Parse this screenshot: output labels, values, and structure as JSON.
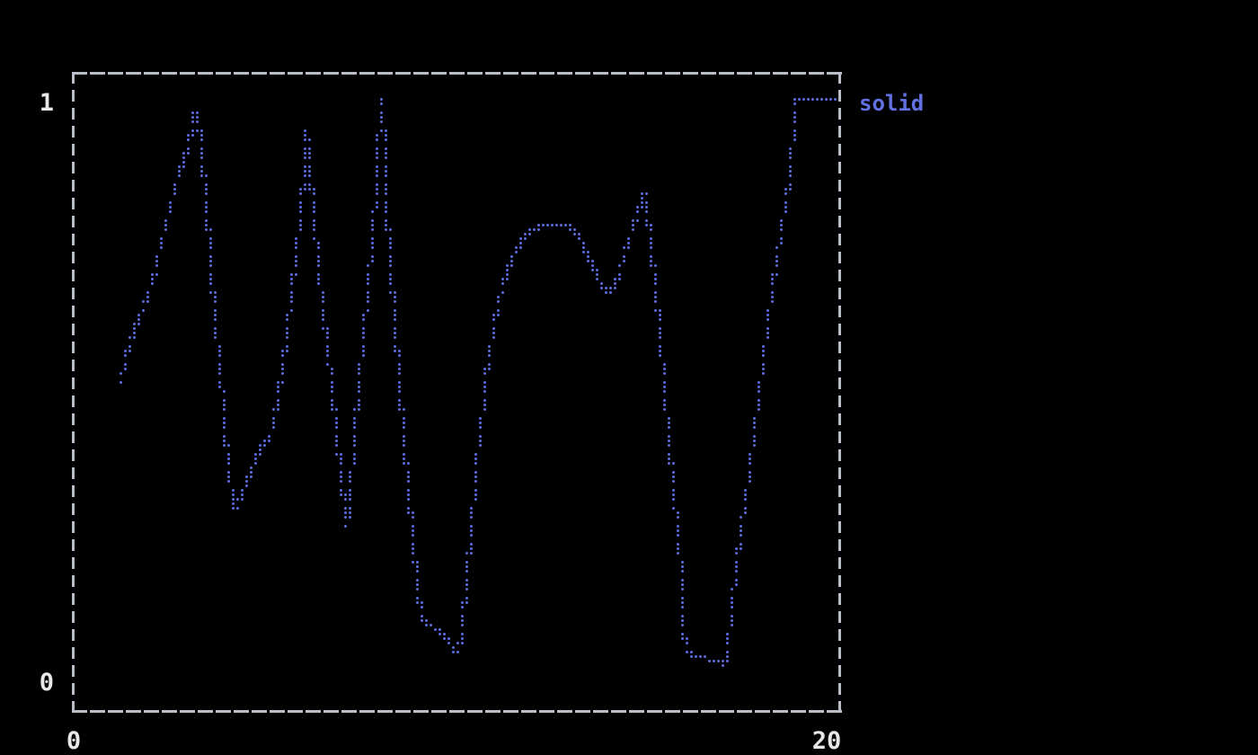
{
  "figure": {
    "background": "#000000",
    "border_color": "#b9bec6",
    "label_color": "#e8e8e8"
  },
  "axes": {
    "y_max_label": "1",
    "y_min_label": "0",
    "x_min_label": "0",
    "x_max_label": "20"
  },
  "legend": {
    "label": "solid",
    "color": "#6270e2"
  },
  "chart_data": {
    "type": "line",
    "style": "terminal braille dotted line plot",
    "title": "",
    "xlabel": "",
    "ylabel": "",
    "xlim": [
      0,
      20
    ],
    "ylim": [
      0,
      1
    ],
    "grid": false,
    "legend_position": "top-right outside plot",
    "series": [
      {
        "name": "solid",
        "color": "#5c6ce0",
        "points": [
          [
            1.22,
            0.519
          ],
          [
            1.38,
            0.567
          ],
          [
            1.57,
            0.607
          ],
          [
            1.76,
            0.636
          ],
          [
            1.9,
            0.664
          ],
          [
            2.02,
            0.684
          ],
          [
            2.16,
            0.718
          ],
          [
            2.27,
            0.752
          ],
          [
            2.39,
            0.786
          ],
          [
            2.51,
            0.82
          ],
          [
            2.63,
            0.854
          ],
          [
            2.74,
            0.879
          ],
          [
            2.88,
            0.901
          ],
          [
            3.03,
            0.938
          ],
          [
            3.12,
            0.972
          ],
          [
            3.19,
            0.991
          ],
          [
            3.26,
            0.957
          ],
          [
            3.33,
            0.91
          ],
          [
            3.4,
            0.864
          ],
          [
            3.45,
            0.817
          ],
          [
            3.52,
            0.768
          ],
          [
            3.56,
            0.724
          ],
          [
            3.61,
            0.681
          ],
          [
            3.66,
            0.639
          ],
          [
            3.73,
            0.593
          ],
          [
            3.78,
            0.554
          ],
          [
            3.85,
            0.511
          ],
          [
            3.89,
            0.469
          ],
          [
            3.94,
            0.43
          ],
          [
            3.99,
            0.392
          ],
          [
            4.03,
            0.361
          ],
          [
            4.1,
            0.33
          ],
          [
            4.15,
            0.306
          ],
          [
            4.22,
            0.297
          ],
          [
            4.31,
            0.313
          ],
          [
            4.43,
            0.333
          ],
          [
            4.57,
            0.356
          ],
          [
            4.71,
            0.379
          ],
          [
            4.85,
            0.399
          ],
          [
            4.99,
            0.413
          ],
          [
            5.14,
            0.426
          ],
          [
            5.23,
            0.458
          ],
          [
            5.32,
            0.492
          ],
          [
            5.42,
            0.533
          ],
          [
            5.51,
            0.573
          ],
          [
            5.58,
            0.613
          ],
          [
            5.65,
            0.653
          ],
          [
            5.72,
            0.693
          ],
          [
            5.79,
            0.734
          ],
          [
            5.86,
            0.774
          ],
          [
            5.91,
            0.808
          ],
          [
            5.96,
            0.842
          ],
          [
            6.0,
            0.879
          ],
          [
            6.05,
            0.918
          ],
          [
            6.07,
            0.946
          ],
          [
            6.12,
            0.913
          ],
          [
            6.17,
            0.876
          ],
          [
            6.21,
            0.841
          ],
          [
            6.26,
            0.802
          ],
          [
            6.31,
            0.768
          ],
          [
            6.35,
            0.732
          ],
          [
            6.42,
            0.693
          ],
          [
            6.47,
            0.659
          ],
          [
            6.52,
            0.624
          ],
          [
            6.59,
            0.588
          ],
          [
            6.64,
            0.557
          ],
          [
            6.71,
            0.523
          ],
          [
            6.75,
            0.492
          ],
          [
            6.8,
            0.461
          ],
          [
            6.85,
            0.43
          ],
          [
            6.89,
            0.399
          ],
          [
            6.94,
            0.372
          ],
          [
            6.99,
            0.345
          ],
          [
            7.03,
            0.319
          ],
          [
            7.08,
            0.294
          ],
          [
            7.13,
            0.271
          ],
          [
            7.18,
            0.306
          ],
          [
            7.22,
            0.345
          ],
          [
            7.27,
            0.384
          ],
          [
            7.32,
            0.423
          ],
          [
            7.36,
            0.458
          ],
          [
            7.41,
            0.492
          ],
          [
            7.46,
            0.526
          ],
          [
            7.5,
            0.56
          ],
          [
            7.55,
            0.594
          ],
          [
            7.6,
            0.629
          ],
          [
            7.64,
            0.663
          ],
          [
            7.69,
            0.697
          ],
          [
            7.74,
            0.731
          ],
          [
            7.78,
            0.765
          ],
          [
            7.83,
            0.802
          ],
          [
            7.88,
            0.841
          ],
          [
            7.93,
            0.882
          ],
          [
            7.95,
            0.923
          ],
          [
            7.97,
            0.964
          ],
          [
            8.02,
            1.005
          ],
          [
            8.07,
            0.964
          ],
          [
            8.09,
            0.923
          ],
          [
            8.11,
            0.879
          ],
          [
            8.16,
            0.836
          ],
          [
            8.18,
            0.793
          ],
          [
            8.23,
            0.749
          ],
          [
            8.28,
            0.706
          ],
          [
            8.32,
            0.663
          ],
          [
            8.37,
            0.619
          ],
          [
            8.42,
            0.576
          ],
          [
            8.46,
            0.536
          ],
          [
            8.51,
            0.495
          ],
          [
            8.56,
            0.458
          ],
          [
            8.6,
            0.421
          ],
          [
            8.65,
            0.384
          ],
          [
            8.7,
            0.35
          ],
          [
            8.75,
            0.316
          ],
          [
            8.79,
            0.282
          ],
          [
            8.84,
            0.248
          ],
          [
            8.89,
            0.214
          ],
          [
            8.93,
            0.181
          ],
          [
            8.98,
            0.152
          ],
          [
            9.03,
            0.127
          ],
          [
            9.1,
            0.11
          ],
          [
            9.21,
            0.102
          ],
          [
            9.36,
            0.094
          ],
          [
            9.52,
            0.087
          ],
          [
            9.66,
            0.079
          ],
          [
            9.78,
            0.07
          ],
          [
            9.87,
            0.06
          ],
          [
            9.97,
            0.053
          ],
          [
            10.04,
            0.048
          ],
          [
            10.08,
            0.071
          ],
          [
            10.13,
            0.098
          ],
          [
            10.18,
            0.128
          ],
          [
            10.22,
            0.164
          ],
          [
            10.27,
            0.198
          ],
          [
            10.32,
            0.232
          ],
          [
            10.36,
            0.266
          ],
          [
            10.41,
            0.3
          ],
          [
            10.46,
            0.334
          ],
          [
            10.5,
            0.368
          ],
          [
            10.55,
            0.402
          ],
          [
            10.6,
            0.435
          ],
          [
            10.67,
            0.469
          ],
          [
            10.72,
            0.502
          ],
          [
            10.76,
            0.533
          ],
          [
            10.83,
            0.563
          ],
          [
            10.9,
            0.593
          ],
          [
            10.97,
            0.621
          ],
          [
            11.04,
            0.646
          ],
          [
            11.14,
            0.67
          ],
          [
            11.23,
            0.692
          ],
          [
            11.32,
            0.711
          ],
          [
            11.44,
            0.729
          ],
          [
            11.56,
            0.746
          ],
          [
            11.68,
            0.76
          ],
          [
            11.82,
            0.771
          ],
          [
            11.96,
            0.779
          ],
          [
            12.1,
            0.783
          ],
          [
            12.26,
            0.786
          ],
          [
            12.43,
            0.788
          ],
          [
            12.59,
            0.788
          ],
          [
            12.75,
            0.786
          ],
          [
            12.9,
            0.783
          ],
          [
            13.04,
            0.777
          ],
          [
            13.15,
            0.768
          ],
          [
            13.27,
            0.755
          ],
          [
            13.36,
            0.741
          ],
          [
            13.46,
            0.726
          ],
          [
            13.55,
            0.712
          ],
          [
            13.65,
            0.698
          ],
          [
            13.74,
            0.687
          ],
          [
            13.83,
            0.678
          ],
          [
            13.93,
            0.672
          ],
          [
            14.02,
            0.675
          ],
          [
            14.11,
            0.686
          ],
          [
            14.19,
            0.7
          ],
          [
            14.26,
            0.715
          ],
          [
            14.33,
            0.731
          ],
          [
            14.4,
            0.746
          ],
          [
            14.47,
            0.76
          ],
          [
            14.54,
            0.774
          ],
          [
            14.61,
            0.789
          ],
          [
            14.68,
            0.802
          ],
          [
            14.75,
            0.817
          ],
          [
            14.82,
            0.831
          ],
          [
            14.89,
            0.842
          ],
          [
            14.94,
            0.82
          ],
          [
            14.98,
            0.794
          ],
          [
            15.03,
            0.768
          ],
          [
            15.08,
            0.74
          ],
          [
            15.12,
            0.712
          ],
          [
            15.17,
            0.681
          ],
          [
            15.22,
            0.647
          ],
          [
            15.26,
            0.611
          ],
          [
            15.31,
            0.574
          ],
          [
            15.36,
            0.539
          ],
          [
            15.4,
            0.505
          ],
          [
            15.45,
            0.471
          ],
          [
            15.5,
            0.437
          ],
          [
            15.55,
            0.402
          ],
          [
            15.59,
            0.368
          ],
          [
            15.64,
            0.334
          ],
          [
            15.69,
            0.302
          ],
          [
            15.73,
            0.269
          ],
          [
            15.78,
            0.237
          ],
          [
            15.83,
            0.204
          ],
          [
            15.85,
            0.175
          ],
          [
            15.87,
            0.146
          ],
          [
            15.9,
            0.118
          ],
          [
            15.92,
            0.09
          ],
          [
            15.94,
            0.065
          ],
          [
            15.99,
            0.053
          ],
          [
            16.08,
            0.048
          ],
          [
            16.23,
            0.045
          ],
          [
            16.39,
            0.042
          ],
          [
            16.55,
            0.039
          ],
          [
            16.72,
            0.036
          ],
          [
            16.86,
            0.033
          ],
          [
            16.98,
            0.031
          ],
          [
            17.02,
            0.051
          ],
          [
            17.07,
            0.074
          ],
          [
            17.12,
            0.099
          ],
          [
            17.16,
            0.127
          ],
          [
            17.21,
            0.155
          ],
          [
            17.26,
            0.183
          ],
          [
            17.3,
            0.211
          ],
          [
            17.35,
            0.237
          ],
          [
            17.4,
            0.263
          ],
          [
            17.47,
            0.291
          ],
          [
            17.54,
            0.322
          ],
          [
            17.61,
            0.356
          ],
          [
            17.68,
            0.392
          ],
          [
            17.75,
            0.427
          ],
          [
            17.82,
            0.464
          ],
          [
            17.89,
            0.502
          ],
          [
            17.96,
            0.539
          ],
          [
            18.03,
            0.576
          ],
          [
            18.1,
            0.613
          ],
          [
            18.17,
            0.65
          ],
          [
            18.24,
            0.686
          ],
          [
            18.31,
            0.717
          ],
          [
            18.38,
            0.746
          ],
          [
            18.45,
            0.774
          ],
          [
            18.52,
            0.802
          ],
          [
            18.59,
            0.83
          ],
          [
            18.66,
            0.864
          ],
          [
            18.71,
            0.898
          ],
          [
            18.76,
            0.933
          ],
          [
            18.78,
            0.972
          ],
          [
            18.8,
            1.0
          ],
          [
            18.94,
            1.005
          ],
          [
            19.18,
            1.005
          ],
          [
            19.46,
            1.005
          ],
          [
            19.74,
            1.005
          ],
          [
            19.95,
            1.005
          ]
        ]
      }
    ]
  }
}
